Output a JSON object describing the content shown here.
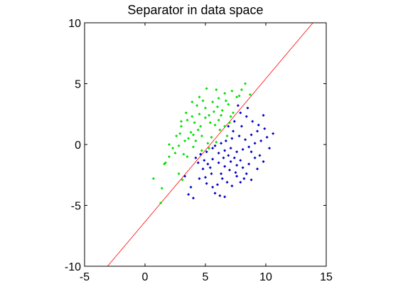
{
  "chart_data": {
    "type": "scatter",
    "title": "Separator in data space",
    "xlabel": "",
    "ylabel": "",
    "xlim": [
      -5,
      15
    ],
    "ylim": [
      -10,
      10
    ],
    "xticks": [
      -5,
      0,
      5,
      10,
      15
    ],
    "yticks": [
      -10,
      -5,
      0,
      5,
      10
    ],
    "xtick_labels": [
      "-5",
      "0",
      "5",
      "10",
      "15"
    ],
    "ytick_labels": [
      "-10",
      "-5",
      "0",
      "5",
      "10"
    ],
    "grid": false,
    "legend": "none",
    "series": [
      {
        "color": "#00e000",
        "marker": "point",
        "points": [
          [
            1.3,
            -4.8
          ],
          [
            1.4,
            -3.6
          ],
          [
            0.7,
            -2.8
          ],
          [
            1.6,
            -1.6
          ],
          [
            1.7,
            -1.5
          ],
          [
            2.0,
            -1.0
          ],
          [
            2.5,
            -0.7
          ],
          [
            2.3,
            -0.3
          ],
          [
            2.8,
            -0.1
          ],
          [
            2.9,
            0.9
          ],
          [
            3.0,
            1.5
          ],
          [
            2.0,
            0.0
          ],
          [
            3.2,
            -0.8
          ],
          [
            3.5,
            -1.0
          ],
          [
            4.0,
            -0.2
          ],
          [
            4.2,
            0.3
          ],
          [
            3.6,
            0.5
          ],
          [
            3.8,
            1.0
          ],
          [
            4.4,
            1.2
          ],
          [
            4.7,
            0.7
          ],
          [
            5.2,
            0.1
          ],
          [
            5.5,
            0.6
          ],
          [
            4.6,
            1.5
          ],
          [
            4.1,
            1.8
          ],
          [
            3.5,
            2.0
          ],
          [
            3.9,
            2.3
          ],
          [
            4.5,
            2.5
          ],
          [
            5.0,
            2.2
          ],
          [
            5.4,
            1.8
          ],
          [
            5.8,
            1.6
          ],
          [
            6.2,
            1.2
          ],
          [
            6.6,
            1.5
          ],
          [
            7.0,
            1.8
          ],
          [
            6.3,
            2.4
          ],
          [
            5.7,
            2.7
          ],
          [
            5.0,
            3.0
          ],
          [
            4.3,
            3.2
          ],
          [
            3.9,
            3.5
          ],
          [
            4.5,
            3.9
          ],
          [
            5.1,
            4.6
          ],
          [
            5.6,
            3.5
          ],
          [
            6.0,
            3.1
          ],
          [
            6.4,
            2.8
          ],
          [
            6.9,
            3.3
          ],
          [
            7.3,
            2.6
          ],
          [
            7.6,
            3.9
          ],
          [
            7.2,
            4.4
          ],
          [
            6.6,
            4.2
          ],
          [
            6.1,
            3.8
          ],
          [
            5.9,
            4.5
          ],
          [
            7.8,
            4.0
          ],
          [
            8.3,
            5.0
          ],
          [
            8.0,
            4.5
          ],
          [
            8.7,
            4.1
          ],
          [
            3.1,
            -2.9
          ],
          [
            2.8,
            -2.4
          ],
          [
            3.0,
            1.9
          ],
          [
            4.7,
            -0.5
          ],
          [
            5.3,
            -0.3
          ],
          [
            3.3,
            0.3
          ],
          [
            2.6,
            0.7
          ],
          [
            4.0,
            0.8
          ],
          [
            5.9,
            0.2
          ],
          [
            6.8,
            0.7
          ],
          [
            6.1,
            2.0
          ],
          [
            4.8,
            3.6
          ],
          [
            5.3,
            2.4
          ],
          [
            3.4,
            2.6
          ],
          [
            6.7,
            3.6
          ],
          [
            7.1,
            2.3
          ]
        ]
      },
      {
        "color": "#0000c8",
        "marker": "point",
        "points": [
          [
            3.3,
            -2.6
          ],
          [
            3.8,
            -3.5
          ],
          [
            3.6,
            -4.1
          ],
          [
            4.0,
            -4.4
          ],
          [
            4.5,
            -2.8
          ],
          [
            5.1,
            -3.2
          ],
          [
            5.6,
            -3.5
          ],
          [
            5.8,
            -4.0
          ],
          [
            6.2,
            -4.2
          ],
          [
            6.6,
            -4.3
          ],
          [
            6.0,
            -3.3
          ],
          [
            6.4,
            -2.8
          ],
          [
            6.8,
            -3.1
          ],
          [
            7.2,
            -3.4
          ],
          [
            7.6,
            -2.6
          ],
          [
            7.9,
            -3.1
          ],
          [
            8.4,
            -2.4
          ],
          [
            8.8,
            -2.9
          ],
          [
            9.3,
            -2.0
          ],
          [
            9.8,
            -1.4
          ],
          [
            9.1,
            -1.1
          ],
          [
            8.6,
            -1.6
          ],
          [
            8.1,
            -1.9
          ],
          [
            7.6,
            -1.7
          ],
          [
            7.1,
            -1.4
          ],
          [
            6.6,
            -1.8
          ],
          [
            6.1,
            -1.5
          ],
          [
            5.6,
            -1.2
          ],
          [
            5.2,
            -1.6
          ],
          [
            4.8,
            -2.0
          ],
          [
            4.4,
            -1.5
          ],
          [
            4.6,
            -0.8
          ],
          [
            5.1,
            -0.6
          ],
          [
            5.6,
            -0.3
          ],
          [
            6.1,
            -0.7
          ],
          [
            6.6,
            -0.5
          ],
          [
            7.1,
            -0.3
          ],
          [
            7.6,
            -0.6
          ],
          [
            8.1,
            -0.4
          ],
          [
            8.6,
            -0.2
          ],
          [
            9.1,
            0.1
          ],
          [
            9.6,
            0.3
          ],
          [
            10.1,
            0.6
          ],
          [
            10.6,
            0.9
          ],
          [
            9.9,
            1.3
          ],
          [
            9.4,
            1.6
          ],
          [
            8.9,
            1.9
          ],
          [
            8.4,
            2.3
          ],
          [
            7.9,
            2.6
          ],
          [
            7.4,
            1.9
          ],
          [
            6.9,
            1.5
          ],
          [
            7.3,
            1.1
          ],
          [
            7.8,
            0.7
          ],
          [
            8.3,
            0.4
          ],
          [
            8.8,
            0.8
          ],
          [
            9.3,
            1.1
          ],
          [
            8.0,
            1.5
          ],
          [
            7.2,
            0.5
          ],
          [
            6.7,
            0.3
          ],
          [
            6.3,
            0.1
          ],
          [
            5.8,
            -0.1
          ],
          [
            6.5,
            -1.1
          ],
          [
            7.0,
            -2.1
          ],
          [
            7.5,
            -2.3
          ],
          [
            8.2,
            -2.8
          ],
          [
            5.5,
            -2.4
          ],
          [
            5.0,
            -2.7
          ],
          [
            4.2,
            -1.1
          ],
          [
            6.9,
            -0.9
          ],
          [
            7.4,
            -1.1
          ],
          [
            8.8,
            -0.6
          ],
          [
            9.5,
            -0.9
          ],
          [
            8.5,
            3.0
          ],
          [
            9.8,
            2.4
          ],
          [
            7.7,
            3.2
          ],
          [
            6.3,
            -2.4
          ],
          [
            5.4,
            -1.9
          ],
          [
            4.9,
            -1.3
          ],
          [
            7.9,
            -1.3
          ],
          [
            10.3,
            -0.3
          ]
        ]
      }
    ],
    "lines": [
      {
        "color": "#ff0000",
        "x": [
          -3.1,
          13.9
        ],
        "y": [
          -10,
          10
        ]
      }
    ]
  }
}
